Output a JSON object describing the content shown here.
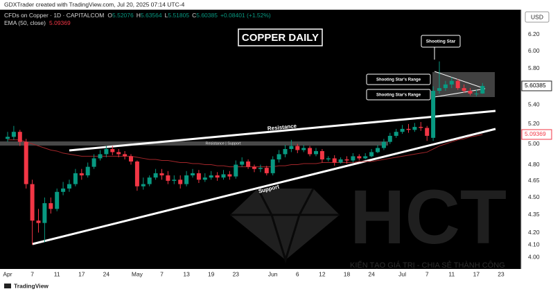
{
  "header": {
    "credit": "GDXTrader created with TradingView.com, Jul 20, 2025 07:14 UTC-4",
    "symbol": "CFDs on Copper · 1D · CAPITALCOM",
    "ohlc_prefixes": [
      "O",
      "H",
      "L",
      "C"
    ],
    "change": "+0.08401 (+1.52%)",
    "currency": "USD"
  },
  "chart_data": {
    "type": "candlestick",
    "title": "COPPER DAILY",
    "log": true,
    "up_color": "#089981",
    "down_color": "#f23645",
    "categories": [
      "Apr",
      null,
      null,
      null,
      "7",
      null,
      null,
      null,
      "11",
      null,
      null,
      null,
      "17",
      null,
      null,
      null,
      "24",
      null,
      null,
      null,
      null,
      "May",
      null,
      null,
      null,
      "7",
      null,
      null,
      null,
      "13",
      null,
      null,
      null,
      "19",
      null,
      null,
      null,
      "23",
      null,
      null,
      null,
      null,
      null,
      "Jun",
      null,
      null,
      null,
      "6",
      null,
      null,
      null,
      "12",
      null,
      null,
      null,
      "18",
      null,
      null,
      null,
      "24",
      null,
      null,
      null,
      null,
      "Jul",
      null,
      null,
      null,
      "7",
      null,
      null,
      null,
      "11",
      null,
      null,
      null,
      "17",
      null,
      null,
      null,
      "23"
    ],
    "open": [
      5.05,
      5.07,
      5.12,
      5.02,
      4.62,
      4.3,
      4.28,
      4.45,
      4.4,
      4.55,
      4.58,
      4.62,
      4.72,
      4.7,
      4.78,
      4.86,
      4.9,
      4.95,
      4.92,
      4.9,
      4.88,
      4.83,
      4.6,
      4.62,
      4.68,
      4.72,
      4.7,
      4.65,
      4.66,
      4.62,
      4.7,
      4.72,
      4.66,
      4.68,
      4.7,
      4.68,
      4.71,
      4.69,
      4.8,
      4.83,
      4.78,
      4.76,
      4.77,
      4.72,
      4.85,
      4.9,
      4.95,
      4.98,
      4.94,
      4.96,
      4.9,
      4.93,
      4.85,
      4.86,
      4.82,
      4.85,
      4.84,
      4.88,
      4.86,
      4.88,
      4.92,
      4.96,
      5.02,
      5.08,
      5.12,
      5.15,
      5.14,
      5.17,
      5.16,
      5.06,
      5.55,
      5.58,
      5.62,
      5.66,
      5.58,
      5.55,
      5.52,
      5.52076,
      null,
      null,
      null
    ],
    "high": [
      5.12,
      5.18,
      5.14,
      5.05,
      4.66,
      4.4,
      4.5,
      4.5,
      4.58,
      4.64,
      4.66,
      4.76,
      4.76,
      4.82,
      4.9,
      4.94,
      4.98,
      4.98,
      4.95,
      4.93,
      4.9,
      4.84,
      4.68,
      4.7,
      4.76,
      4.76,
      4.74,
      4.7,
      4.7,
      4.74,
      4.76,
      4.75,
      4.72,
      4.74,
      4.73,
      4.75,
      4.74,
      4.84,
      4.87,
      4.85,
      4.8,
      4.8,
      4.79,
      4.88,
      4.94,
      4.99,
      5.04,
      5.0,
      4.99,
      4.98,
      4.96,
      4.95,
      4.88,
      4.89,
      4.87,
      4.88,
      4.91,
      4.9,
      4.91,
      4.95,
      4.99,
      5.05,
      5.11,
      5.15,
      5.19,
      5.2,
      5.21,
      5.22,
      5.18,
      5.6,
      5.88,
      5.66,
      5.7,
      5.68,
      5.62,
      5.58,
      5.56,
      5.63564,
      null,
      null,
      null
    ],
    "low": [
      5.02,
      5.04,
      4.98,
      4.58,
      4.1,
      4.2,
      4.12,
      4.36,
      4.38,
      4.52,
      4.55,
      4.6,
      4.66,
      4.68,
      4.76,
      4.84,
      4.87,
      4.89,
      4.87,
      4.85,
      4.8,
      4.56,
      4.57,
      4.6,
      4.66,
      4.66,
      4.62,
      4.62,
      4.58,
      4.6,
      4.68,
      4.63,
      4.64,
      4.66,
      4.65,
      4.66,
      4.66,
      4.67,
      4.78,
      4.76,
      4.73,
      4.73,
      4.7,
      4.7,
      4.82,
      4.87,
      4.92,
      4.91,
      4.92,
      4.88,
      4.88,
      4.82,
      4.83,
      4.79,
      4.81,
      4.81,
      4.82,
      4.84,
      4.85,
      4.87,
      4.91,
      4.94,
      5.0,
      5.06,
      5.1,
      5.11,
      5.12,
      5.13,
      5.03,
      5.03,
      5.52,
      5.55,
      5.58,
      5.56,
      5.53,
      5.5,
      5.49,
      5.51805,
      null,
      null,
      null
    ],
    "close": [
      5.07,
      5.12,
      5.02,
      4.62,
      4.3,
      4.28,
      4.45,
      4.4,
      4.55,
      4.58,
      4.62,
      4.72,
      4.7,
      4.78,
      4.86,
      4.9,
      4.95,
      4.92,
      4.9,
      4.88,
      4.83,
      4.6,
      4.62,
      4.68,
      4.72,
      4.7,
      4.65,
      4.66,
      4.62,
      4.7,
      4.72,
      4.66,
      4.68,
      4.7,
      4.68,
      4.71,
      4.69,
      4.8,
      4.83,
      4.78,
      4.76,
      4.77,
      4.72,
      4.85,
      4.9,
      4.95,
      4.98,
      4.94,
      4.96,
      4.9,
      4.93,
      4.85,
      4.86,
      4.82,
      4.85,
      4.84,
      4.88,
      4.86,
      4.88,
      4.92,
      4.96,
      5.02,
      5.08,
      5.12,
      5.15,
      5.14,
      5.17,
      5.16,
      5.08,
      5.55,
      5.58,
      5.62,
      5.66,
      5.58,
      5.55,
      5.52,
      5.52,
      5.60385,
      null,
      null,
      null
    ],
    "ema": {
      "name": "EMA (50, close)",
      "color": "#a3262a",
      "values": [
        5.04,
        5.04,
        5.04,
        5.02,
        5.0,
        4.98,
        4.96,
        4.94,
        4.93,
        4.91,
        4.9,
        4.89,
        4.88,
        4.88,
        4.88,
        4.88,
        4.88,
        4.88,
        4.88,
        4.88,
        4.88,
        4.87,
        4.86,
        4.85,
        4.85,
        4.84,
        4.84,
        4.83,
        4.82,
        4.82,
        4.81,
        4.81,
        4.8,
        4.8,
        4.79,
        4.79,
        4.78,
        4.78,
        4.78,
        4.78,
        4.78,
        4.78,
        4.78,
        4.78,
        4.79,
        4.79,
        4.8,
        4.8,
        4.81,
        4.81,
        4.81,
        4.82,
        4.82,
        4.82,
        4.82,
        4.82,
        4.82,
        4.83,
        4.83,
        4.83,
        4.84,
        4.85,
        4.86,
        4.87,
        4.88,
        4.89,
        4.9,
        4.91,
        4.92,
        4.95,
        4.98,
        5.0,
        5.02,
        5.04,
        5.05,
        5.07,
        5.08,
        5.09369,
        null,
        null,
        null
      ]
    },
    "ylim": [
      3.91,
      6.51
    ],
    "yticks": [
      {
        "value": 6.2,
        "label": "6.20"
      },
      {
        "value": 6.0,
        "label": "6.00"
      },
      {
        "value": 5.8,
        "label": "5.80"
      },
      {
        "value": 5.4,
        "label": "5.40"
      },
      {
        "value": 5.2,
        "label": "5.20"
      },
      {
        "value": 5.0,
        "label": "5.00"
      },
      {
        "value": 4.8,
        "label": "4.80"
      },
      4.65,
      {
        "value": 4.5,
        "label": "4.50"
      },
      4.35,
      {
        "value": 4.2,
        "label": "4.20"
      },
      {
        "value": 4.1,
        "label": "4.10"
      },
      {
        "value": 4.0,
        "label": "4.00"
      }
    ],
    "grid": false,
    "annotations": {
      "resistance": "Resistance",
      "support": "Support",
      "flip": "Resistance | Support",
      "shooting_star": "Shooting Star",
      "range_top": "Shooting Star's Range",
      "range_bottom": "Shooting Star's Range"
    }
  },
  "watermark": {
    "logo": "HCT",
    "slogan": "KIẾN TẠO GIÁ TRỊ - CHIA SẺ THÀNH CÔNG"
  },
  "footer": {
    "brand": "TradingView"
  }
}
